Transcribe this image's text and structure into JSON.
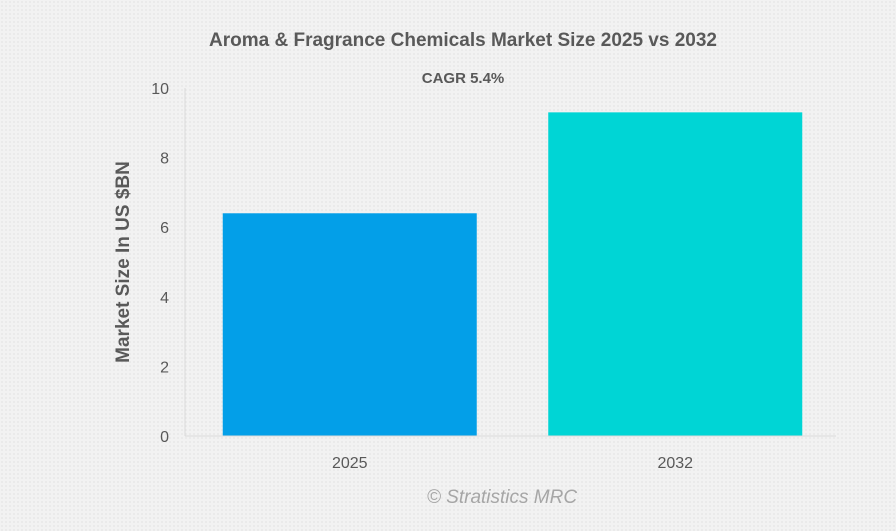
{
  "chart_data": {
    "type": "bar",
    "title": "Aroma & Fragrance Chemicals Market Size 2025 vs 2032",
    "subtitle": "CAGR 5.4%",
    "xlabel": "",
    "ylabel": "Market Size In US $BN",
    "categories": [
      "2025",
      "2032"
    ],
    "values": [
      6.4,
      9.3
    ],
    "bar_colors": [
      "#039fe8",
      "#00d5d5"
    ],
    "ylim": [
      0,
      10
    ],
    "yticks": [
      0,
      2,
      4,
      6,
      8,
      10
    ],
    "ytick_labels": [
      "0",
      "2",
      "4",
      "6",
      "8",
      "10"
    ],
    "grid": false,
    "legend": "none"
  },
  "watermark": "© Stratistics MRC",
  "colors": {
    "axis": "#d9d9d9",
    "text": "#595959",
    "watermark": "#a6a6a6"
  }
}
